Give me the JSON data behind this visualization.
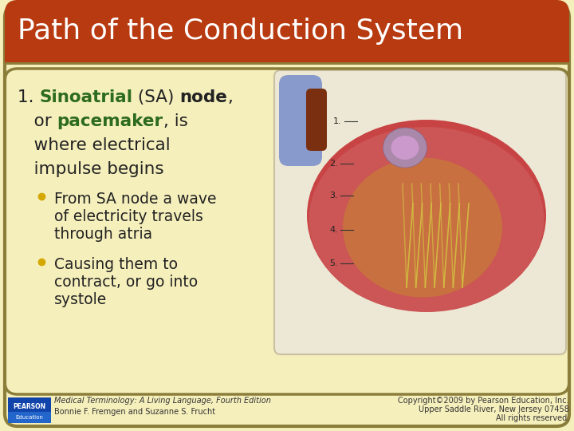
{
  "bg_color": "#f5efbc",
  "border_color": "#8b7d3a",
  "header_bg": "#b83a10",
  "header_text": "Path of the Conduction System",
  "header_text_color": "#ffffff",
  "header_font_size": 26,
  "number_color": "#333333",
  "green_color": "#2d6b1e",
  "dark_color": "#222222",
  "bullet_color": "#d4a800",
  "line1_parts": [
    {
      "text": "1. ",
      "color": "#222222",
      "bold": false
    },
    {
      "text": "Sinoatrial",
      "color": "#2d6b1e",
      "bold": true
    },
    {
      "text": " (SA) ",
      "color": "#222222",
      "bold": false
    },
    {
      "text": "node",
      "color": "#222222",
      "bold": true
    },
    {
      "text": ",",
      "color": "#222222",
      "bold": false
    }
  ],
  "line2_parts": [
    {
      "text": "   or ",
      "color": "#222222",
      "bold": false
    },
    {
      "text": "pacemaker",
      "color": "#2d6b1e",
      "bold": true
    },
    {
      "text": ", is",
      "color": "#222222",
      "bold": false
    }
  ],
  "line3": "   where electrical",
  "line4": "   impulse begins",
  "bullet1_lines": [
    "From SA node a wave",
    "of electricity travels",
    "through atria"
  ],
  "bullet2_lines": [
    "Causing them to",
    "contract, or go into",
    "systole"
  ],
  "footer_left_italic": "Medical Terminology: A Living Language, Fourth Edition",
  "footer_left_plain": "Bonnie F. Fremgen and Suzanne S. Frucht",
  "footer_right_lines": [
    "Copyright©2009 by Pearson Education, Inc.",
    "Upper Saddle River, New Jersey 07458",
    "All rights reserved."
  ],
  "footer_font_size": 7,
  "body_font_size": 15.5,
  "bullet_font_size": 13.5
}
